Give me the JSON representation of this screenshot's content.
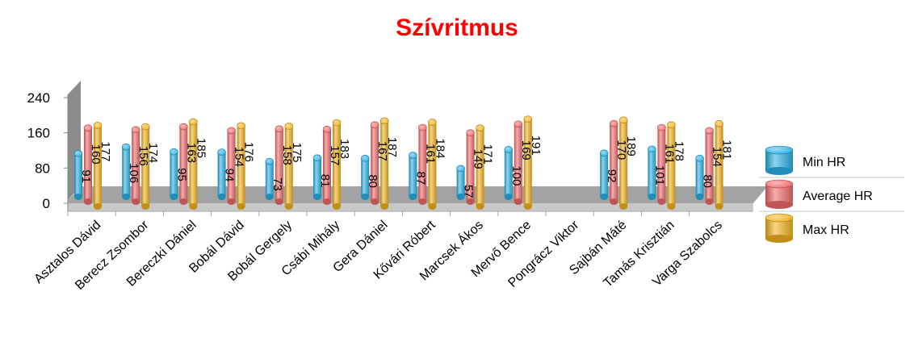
{
  "chart_data": {
    "type": "bar",
    "title": "Szívritmus",
    "xlabel": "",
    "ylabel": "",
    "ylim": [
      0,
      240
    ],
    "yticks": [
      0,
      80,
      160,
      240
    ],
    "grid": false,
    "legend_position": "right",
    "categories": [
      "Asztalos Dávid",
      "Berecz Zsombor",
      "Bereczki Dániel",
      "Bobál Dávid",
      "Bobál Gergely",
      "Csábi Mihály",
      "Gera  Dániel",
      "Kővári Róbert",
      "Marcsek Ákos",
      "Mervő Bence",
      "Pongrácz Viktor",
      "Sajbán  Máté",
      "Tamás  Krisztián",
      "Varga  Szabolcs"
    ],
    "series": [
      {
        "name": "Min HR",
        "color": "#2ab0e4",
        "values": [
          91,
          106,
          95,
          94,
          73,
          81,
          80,
          87,
          57,
          100,
          null,
          92,
          101,
          80
        ]
      },
      {
        "name": "Average HR",
        "color": "#f06a6a",
        "values": [
          160,
          156,
          163,
          154,
          158,
          157,
          167,
          161,
          149,
          169,
          null,
          170,
          161,
          154
        ]
      },
      {
        "name": "Max HR",
        "color": "#f2b21e",
        "values": [
          177,
          174,
          185,
          176,
          175,
          183,
          187,
          184,
          171,
          191,
          null,
          189,
          178,
          181
        ]
      }
    ]
  }
}
